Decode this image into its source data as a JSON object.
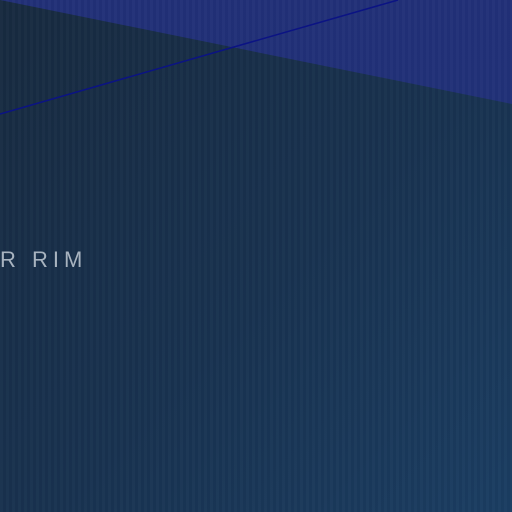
{
  "scene": {
    "background_start": "#172a3f",
    "background_end": "#1a3d62",
    "wedge_color": "#22307a",
    "line_color": "#0b1384",
    "label_text": "R RIM"
  }
}
